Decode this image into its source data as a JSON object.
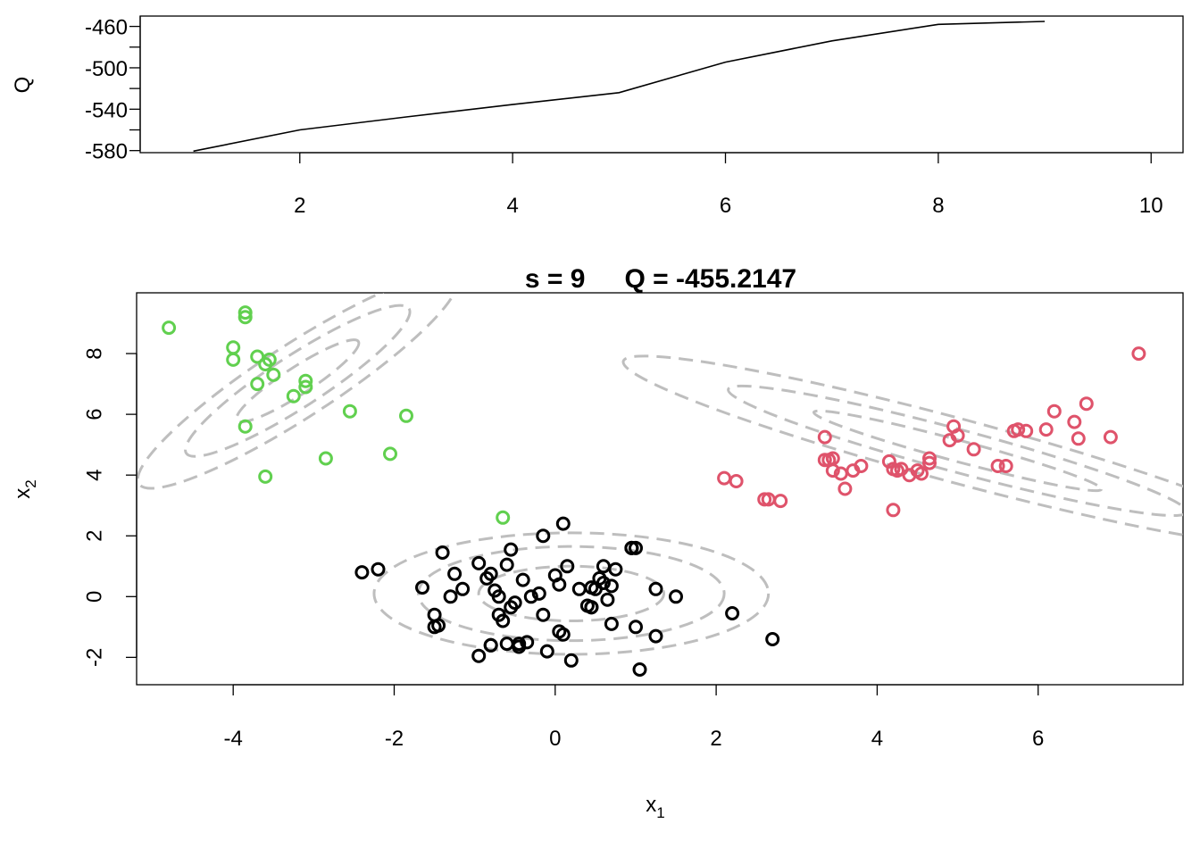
{
  "chart_data": [
    {
      "type": "line",
      "panel": "top",
      "title": "",
      "xlabel": "",
      "ylabel": "Q",
      "xlim": [
        0.5,
        10.3
      ],
      "ylim": [
        -582,
        -450
      ],
      "x_ticks": [
        2,
        4,
        6,
        8,
        10
      ],
      "y_ticks": [
        -580,
        -540,
        -500,
        -460
      ],
      "y_minor_ticks": [
        -560,
        -520,
        -480
      ],
      "line_color": "#000000",
      "x": [
        1,
        2,
        3,
        4,
        5,
        6,
        7,
        8,
        9
      ],
      "y": [
        -580.5,
        -560.0,
        -547.5,
        -535.5,
        -524.0,
        -494.5,
        -474.0,
        -458.0,
        -455.2147
      ]
    },
    {
      "type": "scatter",
      "panel": "bottom",
      "title_s": "s = 9",
      "title_q": "Q = -455.2147",
      "xlabel": "x",
      "xlabel_sub": "1",
      "ylabel": "x",
      "ylabel_sub": "2",
      "xlim": [
        -5.2,
        7.8
      ],
      "ylim": [
        -2.9,
        10.0
      ],
      "x_ticks": [
        -4,
        -2,
        0,
        2,
        4,
        6
      ],
      "y_ticks": [
        -2,
        0,
        2,
        4,
        6,
        8
      ],
      "contour_color": "#bebebe",
      "ellipses": [
        {
          "cluster": "green",
          "cx": -3.2,
          "cy": 7.1,
          "rx": [
            0.9,
            1.65,
            2.35
          ],
          "ry": [
            0.45,
            0.85,
            1.2
          ],
          "angle": -33
        },
        {
          "cluster": "black",
          "cx": 0.2,
          "cy": 0.1,
          "rx": [
            1.15,
            1.9,
            2.45
          ],
          "ry": [
            0.9,
            1.55,
            2.0
          ],
          "angle": 0
        },
        {
          "cluster": "red",
          "cx": 5.0,
          "cy": 4.8,
          "rx": [
            1.85,
            2.95,
            4.3
          ],
          "ry": [
            0.35,
            0.7,
            1.05
          ],
          "angle": 15
        }
      ],
      "series": [
        {
          "cluster": "green",
          "color": "#61d04f",
          "x": [
            -4.8,
            -3.85,
            -3.85,
            -4.0,
            -4.0,
            -3.7,
            -3.6,
            -3.55,
            -3.5,
            -3.7,
            -3.1,
            -3.1,
            -3.25,
            -2.55,
            -1.85,
            -3.85,
            -2.85,
            -2.05,
            -3.6,
            -0.65
          ],
          "y": [
            8.85,
            9.2,
            9.35,
            8.2,
            7.8,
            7.9,
            7.65,
            7.8,
            7.3,
            7.0,
            6.9,
            7.1,
            6.6,
            6.1,
            5.95,
            5.6,
            4.55,
            4.7,
            3.95,
            2.6
          ]
        },
        {
          "cluster": "red",
          "color": "#df536b",
          "x": [
            2.1,
            2.25,
            2.6,
            2.8,
            3.35,
            3.4,
            3.45,
            3.45,
            3.55,
            3.6,
            3.7,
            3.8,
            4.15,
            4.2,
            4.25,
            4.3,
            4.4,
            4.5,
            4.55,
            4.65,
            4.65,
            4.9,
            4.95,
            5.0,
            5.2,
            5.5,
            5.6,
            5.7,
            5.75,
            5.85,
            6.1,
            6.2,
            6.45,
            6.5,
            6.6,
            6.9,
            7.25,
            3.35,
            4.2,
            2.65
          ],
          "y": [
            3.9,
            3.8,
            3.2,
            3.15,
            5.25,
            4.5,
            4.55,
            4.15,
            4.05,
            3.55,
            4.15,
            4.3,
            4.45,
            4.2,
            4.15,
            4.2,
            4.0,
            4.15,
            4.05,
            4.4,
            4.55,
            5.15,
            5.6,
            5.3,
            4.85,
            4.3,
            4.3,
            5.45,
            5.5,
            5.45,
            5.5,
            6.1,
            5.75,
            5.2,
            6.35,
            5.25,
            8.0,
            4.5,
            2.85,
            3.2
          ]
        },
        {
          "cluster": "black",
          "color": "#000000",
          "x": [
            -2.4,
            -2.2,
            -1.65,
            -1.5,
            -1.5,
            -1.45,
            -1.4,
            -1.3,
            -1.25,
            -1.15,
            -0.95,
            -0.85,
            -0.8,
            -0.8,
            -0.75,
            -0.7,
            -0.7,
            -0.65,
            -0.6,
            -0.55,
            -0.55,
            -0.5,
            -0.45,
            -0.4,
            -0.35,
            -0.3,
            -0.2,
            -0.15,
            -0.15,
            -0.1,
            0.0,
            0.05,
            0.05,
            0.1,
            0.1,
            0.15,
            0.2,
            0.3,
            0.4,
            0.45,
            0.45,
            0.5,
            0.55,
            0.6,
            0.6,
            0.65,
            0.7,
            0.7,
            0.75,
            0.95,
            1.0,
            1.0,
            1.05,
            1.25,
            1.25,
            1.5,
            2.2,
            2.7,
            -0.95,
            -0.8,
            -0.6,
            -0.45,
            0.45,
            0.95
          ],
          "y": [
            0.8,
            0.9,
            0.3,
            -0.6,
            -1.0,
            -0.95,
            1.45,
            0.0,
            0.75,
            0.25,
            1.1,
            0.6,
            0.75,
            -1.6,
            0.2,
            0.0,
            -0.6,
            -0.8,
            1.05,
            1.55,
            -0.35,
            -0.2,
            -1.65,
            0.55,
            -1.5,
            0.0,
            0.1,
            -0.6,
            2.0,
            -1.8,
            0.7,
            0.4,
            -1.15,
            2.4,
            -1.25,
            1.0,
            -2.1,
            0.25,
            -0.3,
            -0.35,
            0.3,
            0.25,
            0.6,
            0.45,
            1.0,
            -0.1,
            0.35,
            -0.9,
            0.9,
            1.6,
            1.6,
            -1.0,
            -2.4,
            0.25,
            -1.3,
            0.0,
            -0.55,
            -1.4,
            -1.95,
            -1.6,
            -1.55,
            -1.55,
            -0.35,
            1.6
          ]
        }
      ]
    }
  ]
}
